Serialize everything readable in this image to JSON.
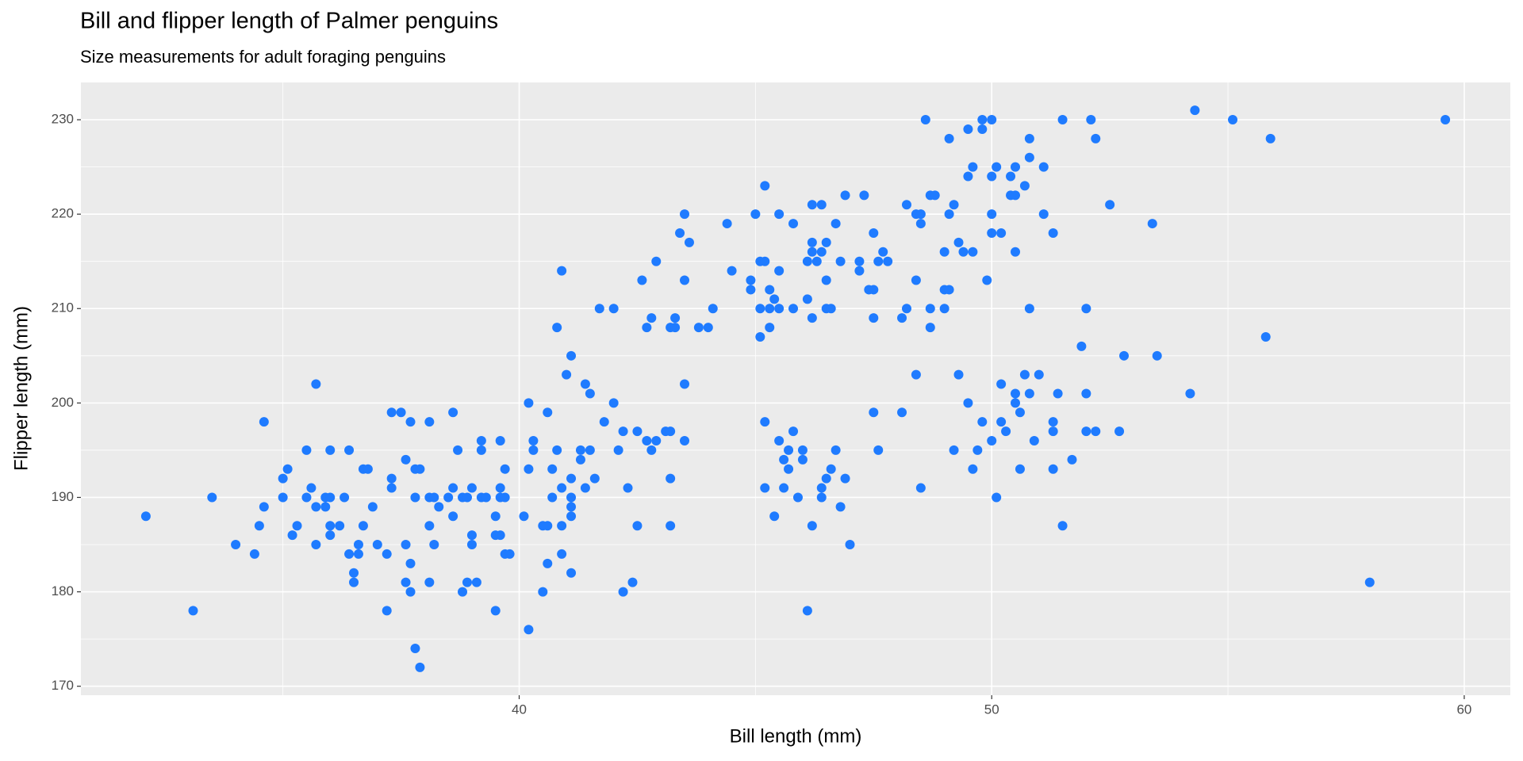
{
  "chart_data": {
    "type": "scatter",
    "title": "Bill and flipper length of Palmer penguins",
    "subtitle": "Size measurements for adult foraging penguins",
    "x_label": "Bill length (mm)",
    "y_label": "Flipper length (mm)",
    "color": "#1f7bff",
    "grid": true,
    "xlim": [
      30.725,
      60.975
    ],
    "ylim": [
      169.05,
      233.95
    ],
    "xticks": [
      40,
      50,
      60
    ],
    "yticks": [
      170,
      180,
      190,
      200,
      210,
      220,
      230
    ],
    "xminor": [
      35,
      45,
      55
    ],
    "yminor": [
      175,
      185,
      195,
      205,
      215,
      225
    ],
    "x": [
      32.1,
      33.1,
      33.5,
      34.0,
      34.4,
      34.5,
      34.6,
      34.6,
      35.0,
      35.0,
      35.1,
      35.2,
      35.3,
      35.5,
      35.5,
      35.6,
      35.7,
      35.7,
      35.7,
      35.9,
      35.9,
      36.0,
      36.0,
      36.0,
      36.0,
      36.2,
      36.3,
      36.4,
      36.4,
      36.5,
      36.5,
      36.6,
      36.6,
      36.7,
      36.8,
      36.7,
      36.9,
      37.0,
      37.2,
      37.2,
      37.3,
      37.3,
      37.3,
      37.5,
      37.6,
      37.6,
      37.6,
      37.7,
      37.7,
      37.7,
      37.8,
      37.8,
      37.8,
      37.9,
      37.9,
      38.1,
      38.1,
      38.1,
      38.1,
      38.2,
      38.2,
      38.3,
      38.5,
      38.6,
      38.6,
      38.6,
      38.7,
      38.8,
      38.8,
      38.9,
      38.9,
      39.0,
      39.0,
      39.0,
      39.1,
      39.2,
      39.2,
      39.2,
      39.3,
      39.5,
      39.5,
      39.5,
      39.6,
      39.6,
      39.6,
      39.6,
      39.7,
      39.7,
      39.7,
      39.8,
      40.1,
      40.2,
      40.2,
      40.2,
      40.3,
      40.3,
      40.5,
      40.5,
      40.6,
      40.6,
      40.6,
      40.7,
      40.7,
      40.8,
      40.8,
      40.9,
      40.9,
      40.9,
      40.9,
      41.0,
      41.1,
      41.1,
      41.1,
      41.1,
      41.1,
      41.1,
      41.3,
      41.3,
      41.4,
      41.4,
      41.5,
      41.5,
      41.6,
      41.7,
      41.8,
      42.0,
      42.0,
      42.1,
      42.2,
      42.2,
      42.3,
      42.4,
      42.5,
      42.5,
      42.6,
      42.7,
      42.7,
      42.8,
      42.8,
      42.9,
      42.9,
      43.1,
      43.2,
      43.2,
      43.2,
      43.2,
      43.3,
      43.3,
      43.4,
      43.5,
      43.5,
      43.5,
      43.6,
      43.5,
      43.8,
      44.0,
      44.1,
      44.4,
      44.5,
      44.9,
      44.9,
      45.0,
      45.1,
      45.1,
      45.1,
      45.2,
      45.2,
      45.2,
      45.2,
      45.3,
      45.3,
      45.3,
      45.4,
      45.4,
      45.5,
      45.5,
      45.5,
      45.5,
      45.6,
      45.6,
      45.7,
      45.7,
      45.8,
      45.8,
      45.8,
      45.9,
      46.0,
      46.0,
      46.1,
      46.1,
      46.2,
      46.2,
      46.2,
      46.2,
      46.2,
      46.1,
      46.3,
      46.4,
      46.4,
      46.4,
      46.4,
      46.5,
      46.5,
      46.5,
      46.5,
      46.6,
      46.6,
      46.7,
      46.7,
      46.8,
      46.8,
      46.9,
      46.9,
      47.0,
      47.2,
      47.2,
      47.3,
      47.4,
      47.5,
      47.5,
      47.5,
      47.5,
      47.6,
      47.6,
      47.7,
      47.8,
      48.1,
      48.1,
      48.2,
      48.2,
      48.4,
      48.4,
      48.4,
      48.5,
      48.5,
      48.5,
      48.6,
      48.7,
      48.7,
      48.7,
      48.8,
      49.0,
      49.0,
      49.0,
      49.1,
      49.1,
      49.1,
      49.2,
      49.2,
      49.3,
      49.3,
      49.4,
      49.5,
      49.5,
      49.5,
      49.6,
      49.6,
      49.6,
      49.7,
      49.8,
      49.8,
      49.8,
      49.9,
      50.0,
      50.0,
      50.0,
      50.0,
      50.0,
      50.1,
      50.1,
      50.2,
      50.2,
      50.2,
      50.3,
      50.4,
      50.4,
      50.5,
      50.5,
      50.5,
      50.5,
      50.5,
      50.6,
      50.6,
      50.7,
      50.7,
      50.8,
      50.8,
      50.8,
      50.8,
      50.9,
      51.0,
      51.1,
      51.1,
      51.3,
      51.3,
      51.3,
      51.3,
      51.4,
      51.5,
      51.5,
      51.7,
      51.9,
      52.0,
      52.0,
      52.0,
      52.1,
      52.2,
      52.2,
      52.5,
      52.7,
      52.8,
      53.4,
      53.5,
      54.2,
      54.3,
      55.1,
      55.8,
      55.9,
      58.0,
      59.6
    ],
    "y": [
      188,
      178,
      190,
      185,
      184,
      187,
      189,
      198,
      192,
      190,
      193,
      186,
      187,
      195,
      190,
      191,
      202,
      185,
      189,
      190,
      189,
      195,
      187,
      186,
      190,
      187,
      190,
      195,
      184,
      182,
      181,
      185,
      184,
      193,
      193,
      187,
      189,
      185,
      184,
      178,
      199,
      192,
      191,
      199,
      194,
      185,
      181,
      198,
      183,
      180,
      193,
      190,
      174,
      172,
      193,
      190,
      198,
      187,
      181,
      190,
      185,
      189,
      190,
      191,
      188,
      199,
      195,
      180,
      190,
      181,
      190,
      191,
      186,
      185,
      181,
      195,
      196,
      190,
      190,
      178,
      188,
      186,
      196,
      191,
      186,
      190,
      193,
      190,
      184,
      184,
      188,
      176,
      200,
      193,
      196,
      195,
      187,
      180,
      199,
      187,
      183,
      190,
      193,
      195,
      208,
      184,
      187,
      191,
      214,
      203,
      190,
      189,
      188,
      192,
      205,
      182,
      195,
      194,
      202,
      191,
      201,
      195,
      192,
      210,
      198,
      210,
      200,
      195,
      180,
      197,
      191,
      181,
      187,
      197,
      213,
      208,
      196,
      209,
      195,
      196,
      215,
      197,
      197,
      208,
      192,
      187,
      209,
      208,
      218,
      220,
      213,
      202,
      217,
      196,
      208,
      208,
      210,
      219,
      214,
      213,
      212,
      220,
      207,
      210,
      215,
      223,
      215,
      198,
      191,
      212,
      210,
      208,
      211,
      188,
      210,
      214,
      220,
      196,
      194,
      191,
      193,
      195,
      219,
      210,
      197,
      190,
      195,
      194,
      215,
      211,
      216,
      221,
      217,
      209,
      187,
      178,
      215,
      221,
      216,
      191,
      190,
      217,
      213,
      210,
      192,
      193,
      210,
      219,
      195,
      215,
      189,
      222,
      192,
      185,
      215,
      214,
      222,
      212,
      218,
      212,
      209,
      199,
      195,
      215,
      216,
      215,
      209,
      199,
      221,
      210,
      213,
      203,
      220,
      219,
      220,
      191,
      230,
      222,
      208,
      210,
      222,
      216,
      210,
      212,
      212,
      228,
      220,
      221,
      195,
      217,
      203,
      216,
      224,
      229,
      200,
      225,
      216,
      193,
      195,
      229,
      230,
      198,
      213,
      230,
      224,
      220,
      218,
      196,
      190,
      225,
      218,
      202,
      198,
      197,
      224,
      222,
      225,
      222,
      216,
      201,
      200,
      199,
      193,
      223,
      203,
      228,
      226,
      210,
      201,
      196,
      203,
      225,
      220,
      218,
      198,
      197,
      193,
      201,
      230,
      187,
      194,
      206,
      210,
      201,
      197,
      230,
      228,
      197,
      221,
      197,
      205,
      219,
      205,
      201,
      231,
      230,
      207,
      228,
      181,
      230
    ]
  }
}
